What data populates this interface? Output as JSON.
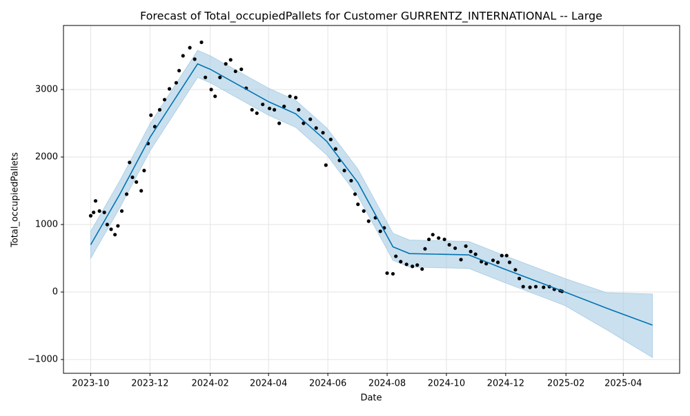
{
  "chart_data": {
    "type": "forecast",
    "title": "Forecast of Total_occupiedPallets for Customer GURRENTZ_INTERNATIONAL -- Large",
    "x_label": "Date",
    "y_label": "Total_occupiedPallets",
    "grid": true,
    "xlim": [
      "2023-09-03",
      "2025-05-29"
    ],
    "xticks": [
      {
        "value": "2023-10-01",
        "label": "2023-10"
      },
      {
        "value": "2023-12-01",
        "label": "2023-12"
      },
      {
        "value": "2024-02-01",
        "label": "2024-02"
      },
      {
        "value": "2024-04-01",
        "label": "2024-04"
      },
      {
        "value": "2024-06-01",
        "label": "2024-06"
      },
      {
        "value": "2024-08-01",
        "label": "2024-08"
      },
      {
        "value": "2024-10-01",
        "label": "2024-10"
      },
      {
        "value": "2024-12-01",
        "label": "2024-12"
      },
      {
        "value": "2025-02-01",
        "label": "2025-02"
      },
      {
        "value": "2025-04-01",
        "label": "2025-04"
      }
    ],
    "ylim": [
      -1204,
      3949
    ],
    "yticks": [
      {
        "value": -1000,
        "label": "−1000"
      },
      0,
      1000,
      2000,
      3000
    ],
    "interval": {
      "color": "#a6cbe3",
      "x": [
        "2023-10-01",
        "2023-10-31",
        "2023-12-01",
        "2024-01-19",
        "2024-02-01",
        "2024-04-01",
        "2024-04-29",
        "2024-05-31",
        "2024-07-02",
        "2024-08-07",
        "2024-08-24",
        "2024-10-24",
        "2024-11-28",
        "2025-01-31",
        "2025-03-15",
        "2025-05-01"
      ],
      "lower": [
        500,
        1250,
        2090,
        3180,
        3100,
        2620,
        2440,
        2030,
        1420,
        470,
        370,
        350,
        150,
        -200,
        -560,
        -970
      ],
      "upper": [
        900,
        1650,
        2490,
        3580,
        3500,
        3020,
        2840,
        2430,
        1820,
        870,
        770,
        750,
        550,
        200,
        -10,
        -30
      ]
    },
    "forecast": {
      "color": "#0072b2",
      "x": [
        "2023-10-01",
        "2023-10-31",
        "2023-12-01",
        "2024-01-19",
        "2024-02-01",
        "2024-04-01",
        "2024-04-29",
        "2024-05-31",
        "2024-07-02",
        "2024-08-07",
        "2024-08-24",
        "2024-10-24",
        "2024-11-28",
        "2025-01-31",
        "2025-03-15",
        "2025-05-01"
      ],
      "values": [
        700,
        1450,
        2290,
        3380,
        3300,
        2820,
        2640,
        2230,
        1620,
        670,
        570,
        550,
        350,
        0,
        -240,
        -490
      ]
    },
    "actual": {
      "color": "#000000",
      "x": [
        "2023-10-01",
        "2023-10-04",
        "2023-10-06",
        "2023-10-10",
        "2023-10-15",
        "2023-10-18",
        "2023-10-22",
        "2023-10-26",
        "2023-10-29",
        "2023-11-02",
        "2023-11-07",
        "2023-11-10",
        "2023-11-13",
        "2023-11-17",
        "2023-11-22",
        "2023-11-25",
        "2023-11-29",
        "2023-12-02",
        "2023-12-06",
        "2023-12-11",
        "2023-12-16",
        "2023-12-21",
        "2023-12-28",
        "2023-12-31",
        "2024-01-04",
        "2024-01-11",
        "2024-01-16",
        "2024-01-23",
        "2024-01-27",
        "2024-02-02",
        "2024-02-06",
        "2024-02-11",
        "2024-02-17",
        "2024-02-22",
        "2024-02-27",
        "2024-03-04",
        "2024-03-09",
        "2024-03-15",
        "2024-03-20",
        "2024-03-26",
        "2024-04-02",
        "2024-04-07",
        "2024-04-12",
        "2024-04-17",
        "2024-04-23",
        "2024-04-29",
        "2024-05-02",
        "2024-05-07",
        "2024-05-14",
        "2024-05-20",
        "2024-05-27",
        "2024-05-30",
        "2024-06-04",
        "2024-06-09",
        "2024-06-13",
        "2024-06-18",
        "2024-06-25",
        "2024-06-29",
        "2024-07-02",
        "2024-07-08",
        "2024-07-13",
        "2024-07-20",
        "2024-07-25",
        "2024-07-29",
        "2024-08-01",
        "2024-08-07",
        "2024-08-10",
        "2024-08-15",
        "2024-08-21",
        "2024-08-27",
        "2024-09-01",
        "2024-09-06",
        "2024-09-09",
        "2024-09-13",
        "2024-09-17",
        "2024-09-23",
        "2024-09-29",
        "2024-10-04",
        "2024-10-10",
        "2024-10-16",
        "2024-10-21",
        "2024-10-26",
        "2024-10-31",
        "2024-11-06",
        "2024-11-11",
        "2024-11-18",
        "2024-11-23",
        "2024-11-27",
        "2024-12-02",
        "2024-12-05",
        "2024-12-11",
        "2024-12-15",
        "2024-12-19",
        "2024-12-26",
        "2025-01-01",
        "2025-01-09",
        "2025-01-15",
        "2025-01-20",
        "2025-01-26",
        "2025-01-28"
      ],
      "values": [
        1130,
        1180,
        1350,
        1200,
        1180,
        1000,
        930,
        850,
        980,
        1200,
        1450,
        1920,
        1700,
        1630,
        1500,
        1800,
        2200,
        2620,
        2450,
        2700,
        2850,
        3010,
        3100,
        3280,
        3500,
        3620,
        3450,
        3700,
        3180,
        3000,
        2900,
        3180,
        3380,
        3440,
        3270,
        3300,
        3020,
        2700,
        2650,
        2780,
        2720,
        2700,
        2500,
        2750,
        2900,
        2880,
        2700,
        2500,
        2560,
        2430,
        2360,
        1880,
        2260,
        2120,
        1950,
        1800,
        1650,
        1450,
        1300,
        1200,
        1050,
        1100,
        900,
        950,
        280,
        270,
        530,
        450,
        410,
        380,
        400,
        340,
        640,
        780,
        850,
        800,
        780,
        700,
        650,
        480,
        680,
        600,
        560,
        450,
        420,
        470,
        440,
        540,
        540,
        440,
        330,
        200,
        80,
        70,
        80,
        70,
        80,
        40,
        20,
        10
      ]
    }
  }
}
